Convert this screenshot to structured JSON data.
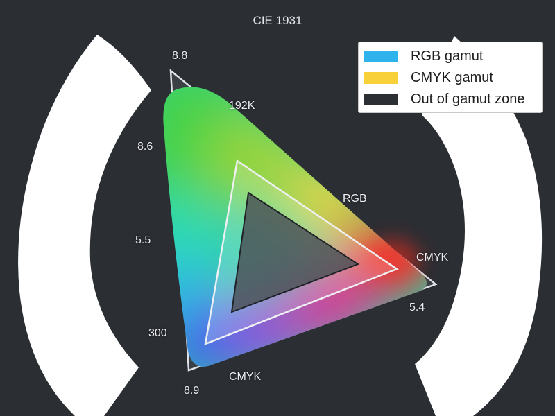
{
  "title": "CIE 1931",
  "labels": {
    "top_apex": "8.8",
    "k_value": "192K",
    "left_upper": "8.6",
    "left_mid": "5.5",
    "left_lower": "300",
    "bottom_apex": "8.9",
    "rgb": "RGB",
    "cmyk_right": "CMYK",
    "right_value": "5.4",
    "cmyk_bottom": "CMYK"
  },
  "legend": {
    "items": [
      {
        "label": "RGB gamut",
        "color": "#2fb3ec"
      },
      {
        "label": "CMYK gamut",
        "color": "#f8d03a"
      },
      {
        "label": "Out of gamut zone",
        "color": "#2c3035"
      }
    ]
  },
  "colors": {
    "background": "#2b2e33",
    "arc": "#ffffff",
    "triangle_outline": "#e7e9ec"
  }
}
